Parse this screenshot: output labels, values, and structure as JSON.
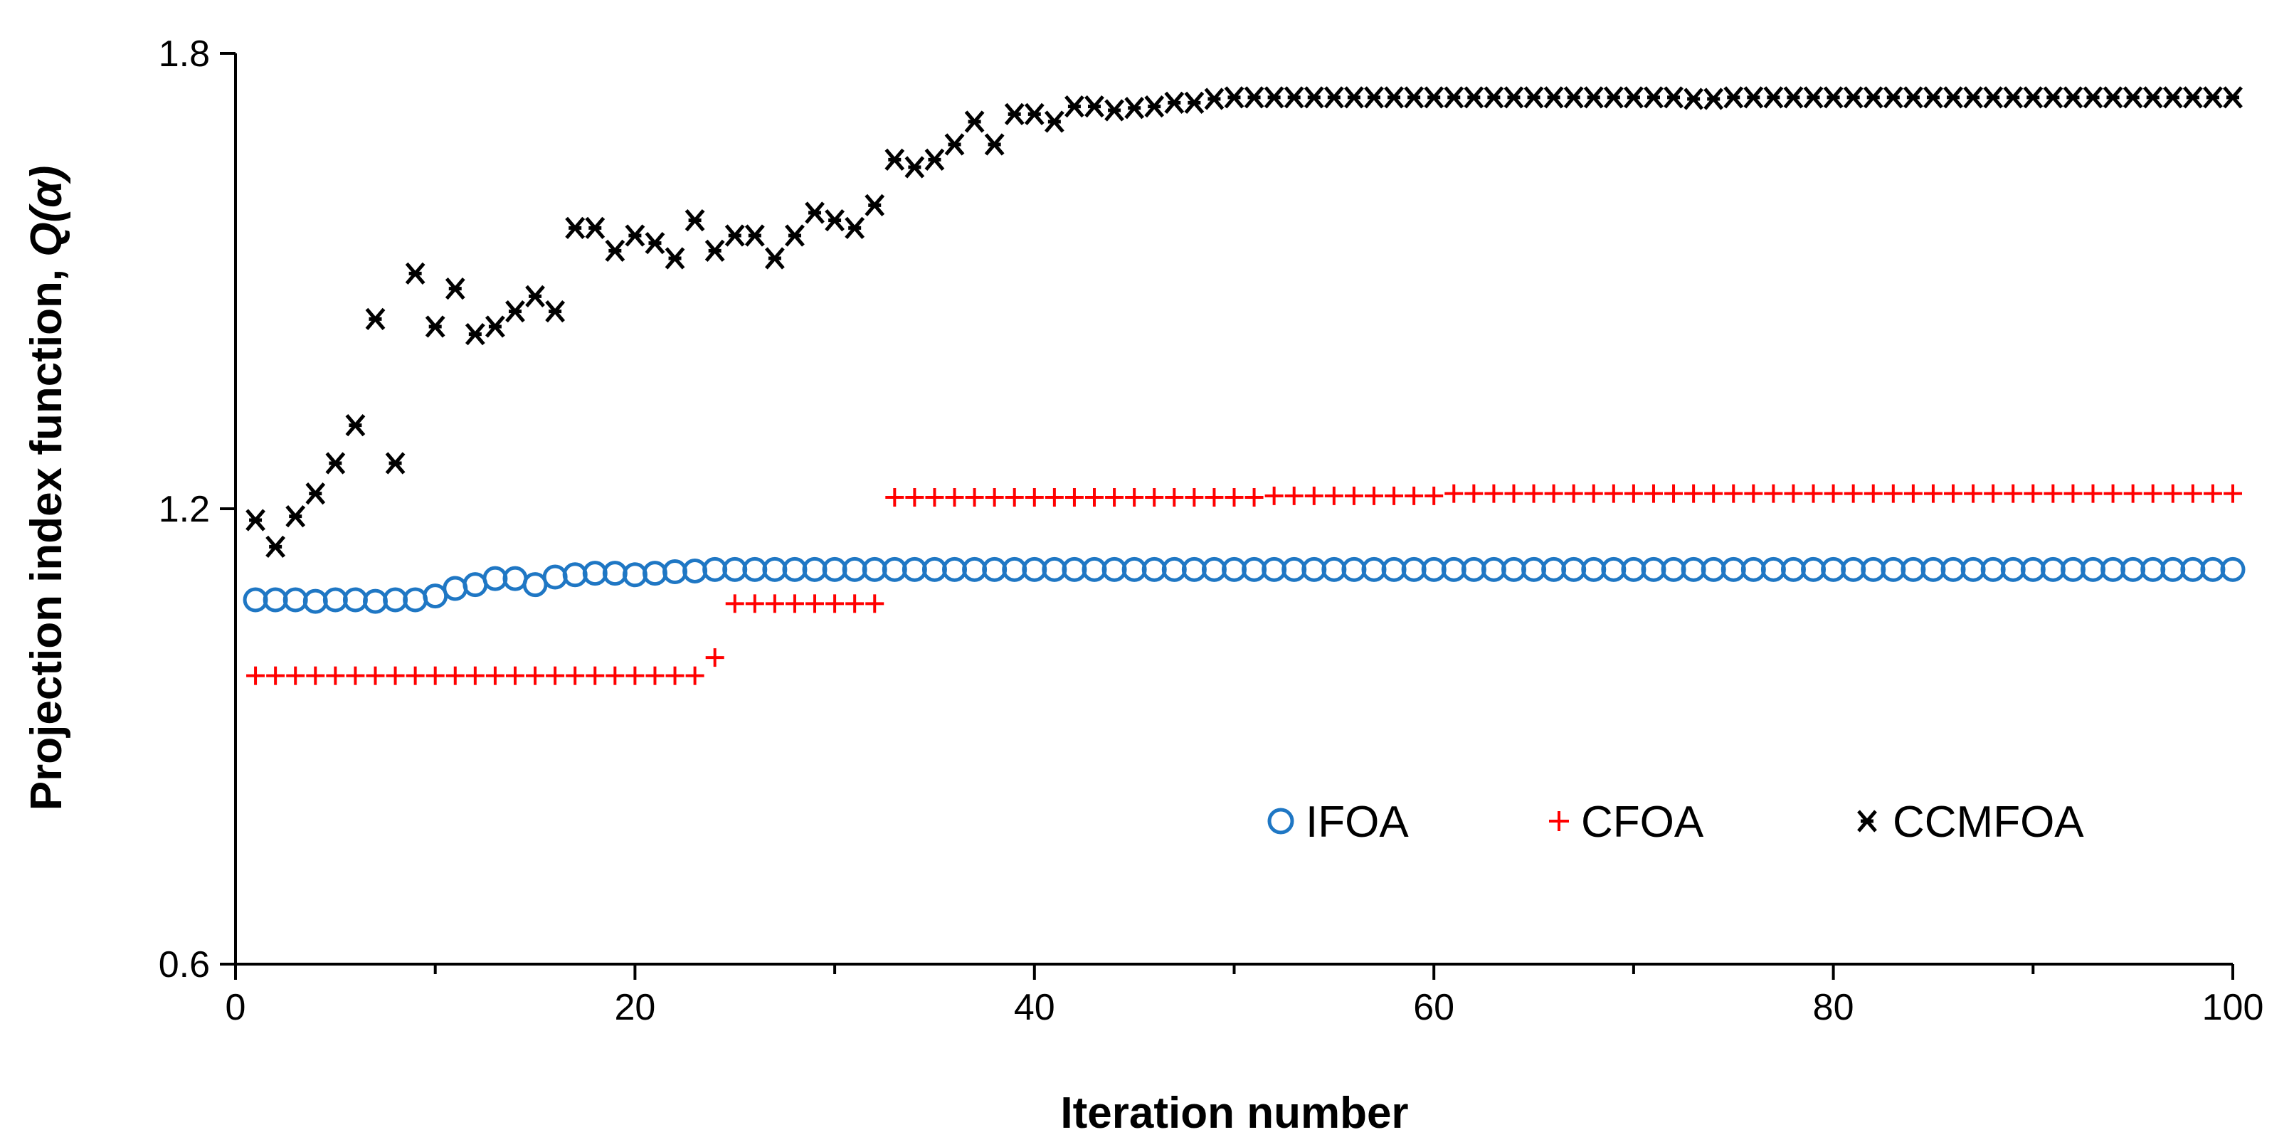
{
  "chart_data": {
    "type": "scatter",
    "title": "",
    "xlabel": "Iteration number",
    "ylabel_prefix": "Projection index function, ",
    "ylabel_symbol": "Q(α)",
    "xlim": [
      0,
      100
    ],
    "ylim": [
      0.6,
      1.8
    ],
    "xticks": [
      0,
      20,
      40,
      60,
      80,
      100
    ],
    "xticks_minor": [
      10,
      30,
      50,
      70,
      90
    ],
    "yticks": [
      0.6,
      1.2,
      1.8
    ],
    "ytick_labels": [
      "0.6",
      "1.2",
      "1.8"
    ],
    "xtick_labels": [
      "0",
      "20",
      "40",
      "60",
      "80",
      "100"
    ],
    "legend_position": "center-right",
    "series": [
      {
        "name": "IFOA",
        "marker": "circle",
        "color": "#1f77c4",
        "x": [
          1,
          2,
          3,
          4,
          5,
          6,
          7,
          8,
          9,
          10,
          11,
          12,
          13,
          14,
          15,
          16,
          17,
          18,
          19,
          20,
          21,
          22,
          23,
          24,
          25,
          26,
          27,
          28,
          29,
          30,
          31,
          32,
          33,
          34,
          35,
          36,
          37,
          38,
          39,
          40,
          41,
          42,
          43,
          44,
          45,
          46,
          47,
          48,
          49,
          50,
          51,
          52,
          53,
          54,
          55,
          56,
          57,
          58,
          59,
          60,
          61,
          62,
          63,
          64,
          65,
          66,
          67,
          68,
          69,
          70,
          71,
          72,
          73,
          74,
          75,
          76,
          77,
          78,
          79,
          80,
          81,
          82,
          83,
          84,
          85,
          86,
          87,
          88,
          89,
          90,
          91,
          92,
          93,
          94,
          95,
          96,
          97,
          98,
          99,
          100
        ],
        "values": [
          1.08,
          1.08,
          1.08,
          1.078,
          1.08,
          1.08,
          1.078,
          1.08,
          1.08,
          1.085,
          1.095,
          1.1,
          1.108,
          1.108,
          1.1,
          1.11,
          1.113,
          1.115,
          1.115,
          1.113,
          1.115,
          1.117,
          1.118,
          1.12,
          1.12,
          1.12,
          1.12,
          1.12,
          1.12,
          1.12,
          1.12,
          1.12,
          1.12,
          1.12,
          1.12,
          1.12,
          1.12,
          1.12,
          1.12,
          1.12,
          1.12,
          1.12,
          1.12,
          1.12,
          1.12,
          1.12,
          1.12,
          1.12,
          1.12,
          1.12,
          1.12,
          1.12,
          1.12,
          1.12,
          1.12,
          1.12,
          1.12,
          1.12,
          1.12,
          1.12,
          1.12,
          1.12,
          1.12,
          1.12,
          1.12,
          1.12,
          1.12,
          1.12,
          1.12,
          1.12,
          1.12,
          1.12,
          1.12,
          1.12,
          1.12,
          1.12,
          1.12,
          1.12,
          1.12,
          1.12,
          1.12,
          1.12,
          1.12,
          1.12,
          1.12,
          1.12,
          1.12,
          1.12,
          1.12,
          1.12,
          1.12,
          1.12,
          1.12,
          1.12,
          1.12,
          1.12,
          1.12,
          1.12,
          1.12,
          1.12
        ]
      },
      {
        "name": "CFOA",
        "marker": "plus",
        "color": "#ff0000",
        "x": [
          1,
          2,
          3,
          4,
          5,
          6,
          7,
          8,
          9,
          10,
          11,
          12,
          13,
          14,
          15,
          16,
          17,
          18,
          19,
          20,
          21,
          22,
          23,
          24,
          25,
          26,
          27,
          28,
          29,
          30,
          31,
          32,
          33,
          34,
          35,
          36,
          37,
          38,
          39,
          40,
          41,
          42,
          43,
          44,
          45,
          46,
          47,
          48,
          49,
          50,
          51,
          52,
          53,
          54,
          55,
          56,
          57,
          58,
          59,
          60,
          61,
          62,
          63,
          64,
          65,
          66,
          67,
          68,
          69,
          70,
          71,
          72,
          73,
          74,
          75,
          76,
          77,
          78,
          79,
          80,
          81,
          82,
          83,
          84,
          85,
          86,
          87,
          88,
          89,
          90,
          91,
          92,
          93,
          94,
          95,
          96,
          97,
          98,
          99,
          100
        ],
        "values": [
          0.98,
          0.98,
          0.98,
          0.98,
          0.98,
          0.98,
          0.98,
          0.98,
          0.98,
          0.98,
          0.98,
          0.98,
          0.98,
          0.98,
          0.98,
          0.98,
          0.98,
          0.98,
          0.98,
          0.98,
          0.98,
          0.98,
          0.98,
          1.004,
          1.075,
          1.075,
          1.075,
          1.075,
          1.075,
          1.075,
          1.075,
          1.075,
          1.215,
          1.215,
          1.215,
          1.215,
          1.215,
          1.215,
          1.215,
          1.215,
          1.215,
          1.215,
          1.215,
          1.215,
          1.215,
          1.215,
          1.215,
          1.215,
          1.215,
          1.215,
          1.215,
          1.217,
          1.217,
          1.217,
          1.217,
          1.217,
          1.217,
          1.217,
          1.217,
          1.217,
          1.22,
          1.22,
          1.22,
          1.22,
          1.22,
          1.22,
          1.22,
          1.22,
          1.22,
          1.22,
          1.22,
          1.22,
          1.22,
          1.22,
          1.22,
          1.22,
          1.22,
          1.22,
          1.22,
          1.22,
          1.22,
          1.22,
          1.22,
          1.22,
          1.22,
          1.22,
          1.22,
          1.22,
          1.22,
          1.22,
          1.22,
          1.22,
          1.22,
          1.22,
          1.22,
          1.22,
          1.22,
          1.22,
          1.22,
          1.22
        ]
      },
      {
        "name": "CCMFOA",
        "marker": "asterisk",
        "color": "#000000",
        "x": [
          1,
          2,
          3,
          4,
          5,
          6,
          7,
          8,
          9,
          10,
          11,
          12,
          13,
          14,
          15,
          16,
          17,
          18,
          19,
          20,
          21,
          22,
          23,
          24,
          25,
          26,
          27,
          28,
          29,
          30,
          31,
          32,
          33,
          34,
          35,
          36,
          37,
          38,
          39,
          40,
          41,
          42,
          43,
          44,
          45,
          46,
          47,
          48,
          49,
          50,
          51,
          52,
          53,
          54,
          55,
          56,
          57,
          58,
          59,
          60,
          61,
          62,
          63,
          64,
          65,
          66,
          67,
          68,
          69,
          70,
          71,
          72,
          73,
          74,
          75,
          76,
          77,
          78,
          79,
          80,
          81,
          82,
          83,
          84,
          85,
          86,
          87,
          88,
          89,
          90,
          91,
          92,
          93,
          94,
          95,
          96,
          97,
          98,
          99,
          100
        ],
        "values": [
          1.185,
          1.15,
          1.19,
          1.22,
          1.26,
          1.31,
          1.45,
          1.26,
          1.51,
          1.44,
          1.49,
          1.43,
          1.44,
          1.46,
          1.48,
          1.46,
          1.57,
          1.57,
          1.54,
          1.56,
          1.55,
          1.53,
          1.58,
          1.54,
          1.56,
          1.56,
          1.53,
          1.56,
          1.59,
          1.58,
          1.57,
          1.6,
          1.66,
          1.65,
          1.66,
          1.68,
          1.71,
          1.68,
          1.72,
          1.72,
          1.71,
          1.73,
          1.73,
          1.725,
          1.728,
          1.73,
          1.735,
          1.735,
          1.74,
          1.742,
          1.742,
          1.742,
          1.742,
          1.742,
          1.742,
          1.742,
          1.742,
          1.742,
          1.742,
          1.742,
          1.742,
          1.742,
          1.742,
          1.742,
          1.742,
          1.742,
          1.742,
          1.742,
          1.742,
          1.742,
          1.742,
          1.742,
          1.74,
          1.74,
          1.742,
          1.742,
          1.742,
          1.742,
          1.742,
          1.742,
          1.742,
          1.742,
          1.742,
          1.742,
          1.742,
          1.742,
          1.742,
          1.742,
          1.742,
          1.742,
          1.742,
          1.742,
          1.742,
          1.742,
          1.742,
          1.742,
          1.742,
          1.742,
          1.742,
          1.742
        ]
      }
    ]
  }
}
